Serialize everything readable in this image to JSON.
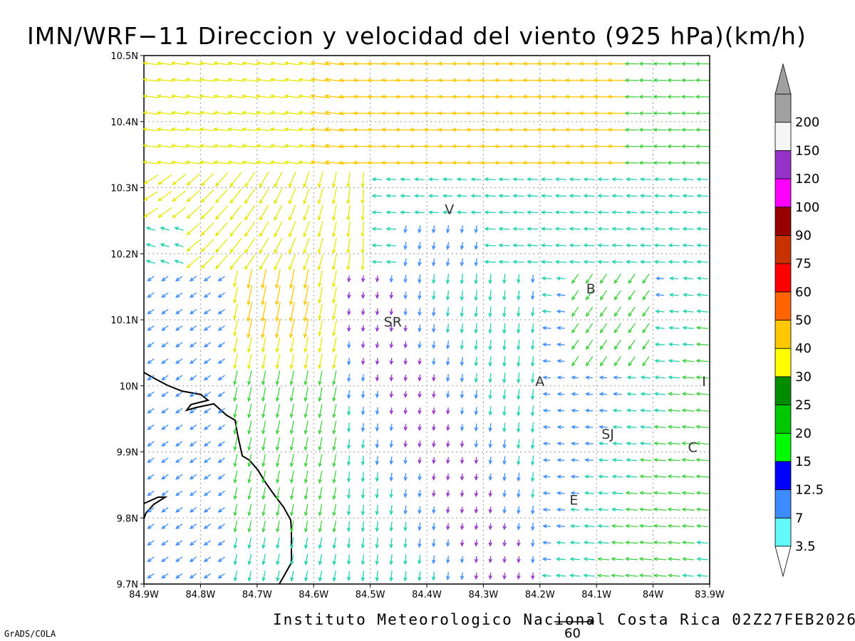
{
  "title": "IMN/WRF−11 Direccion y velocidad del viento (925 hPa)(km/h)",
  "footer": "Instituto Meteorologico Nacional Costa Rica 02Z27FEB2026",
  "credit": "GrADS/COLA",
  "reference_vector": {
    "label": "60",
    "value": 60,
    "unit": "km/h"
  },
  "map": {
    "lon_range": [
      -84.9,
      -83.9
    ],
    "lat_range": [
      9.7,
      10.5
    ],
    "grid": "dotted",
    "x_ticks": [
      {
        "value": -84.9,
        "label": "84.9W"
      },
      {
        "value": -84.8,
        "label": "84.8W"
      },
      {
        "value": -84.7,
        "label": "84.7W"
      },
      {
        "value": -84.6,
        "label": "84.6W"
      },
      {
        "value": -84.5,
        "label": "84.5W"
      },
      {
        "value": -84.4,
        "label": "84.4W"
      },
      {
        "value": -84.3,
        "label": "84.3W"
      },
      {
        "value": -84.2,
        "label": "84.2W"
      },
      {
        "value": -84.1,
        "label": "84.1W"
      },
      {
        "value": -84.0,
        "label": "84W"
      },
      {
        "value": -83.9,
        "label": "83.9W"
      }
    ],
    "y_ticks": [
      {
        "value": 9.7,
        "label": "9.7N"
      },
      {
        "value": 9.8,
        "label": "9.8N"
      },
      {
        "value": 9.9,
        "label": "9.9N"
      },
      {
        "value": 10.0,
        "label": "10N"
      },
      {
        "value": 10.1,
        "label": "10.1N"
      },
      {
        "value": 10.2,
        "label": "10.2N"
      },
      {
        "value": 10.3,
        "label": "10.3N"
      },
      {
        "value": 10.4,
        "label": "10.4N"
      },
      {
        "value": 10.5,
        "label": "10.5N"
      }
    ],
    "cities": [
      {
        "label": "V",
        "lon": -84.36,
        "lat": 10.26
      },
      {
        "label": "B",
        "lon": -84.11,
        "lat": 10.14
      },
      {
        "label": "SR",
        "lon": -84.46,
        "lat": 10.09
      },
      {
        "label": "A",
        "lon": -84.2,
        "lat": 10.0
      },
      {
        "label": "I",
        "lon": -83.91,
        "lat": 10.0
      },
      {
        "label": "SJ",
        "lon": -84.08,
        "lat": 9.92
      },
      {
        "label": "C",
        "lon": -83.93,
        "lat": 9.9
      },
      {
        "label": "E",
        "lon": -84.14,
        "lat": 9.82
      }
    ]
  },
  "colorbar": {
    "levels": [
      "3.5",
      "7",
      "12.5",
      "15",
      "20",
      "25",
      "30",
      "40",
      "50",
      "60",
      "75",
      "90",
      "100",
      "120",
      "150",
      "200"
    ],
    "bands": [
      {
        "lo": 0,
        "hi": 3.5,
        "color": "#64fafa"
      },
      {
        "lo": 3.5,
        "hi": 7,
        "color": "#3c8cff"
      },
      {
        "lo": 7,
        "hi": 12.5,
        "color": "#0000ff"
      },
      {
        "lo": 12.5,
        "hi": 15,
        "color": "#00fa00"
      },
      {
        "lo": 15,
        "hi": 20,
        "color": "#00c800"
      },
      {
        "lo": 20,
        "hi": 25,
        "color": "#008c00"
      },
      {
        "lo": 25,
        "hi": 30,
        "color": "#ffff00"
      },
      {
        "lo": 30,
        "hi": 40,
        "color": "#ffc800"
      },
      {
        "lo": 40,
        "hi": 50,
        "color": "#ff6400"
      },
      {
        "lo": 50,
        "hi": 60,
        "color": "#ff0000"
      },
      {
        "lo": 60,
        "hi": 75,
        "color": "#c83200"
      },
      {
        "lo": 75,
        "hi": 90,
        "color": "#960000"
      },
      {
        "lo": 90,
        "hi": 100,
        "color": "#ff00ff"
      },
      {
        "lo": 100,
        "hi": 120,
        "color": "#9632c8"
      },
      {
        "lo": 120,
        "hi": 150,
        "color": "#f5f5f5"
      },
      {
        "lo": 150,
        "hi": 200,
        "color": "#a0a0a0"
      }
    ],
    "under_color": "#ffffff",
    "over_color": "#a0a0a0"
  },
  "arrow_palette": {
    "slow": "#9632c8",
    "light": "#3c8cff",
    "moderate": "#20d0b0",
    "fresh": "#40d040",
    "strong": "#e8e800",
    "very_strong": "#ffc800",
    "gale": "#ff8c00",
    "storm": "#ff2050"
  }
}
